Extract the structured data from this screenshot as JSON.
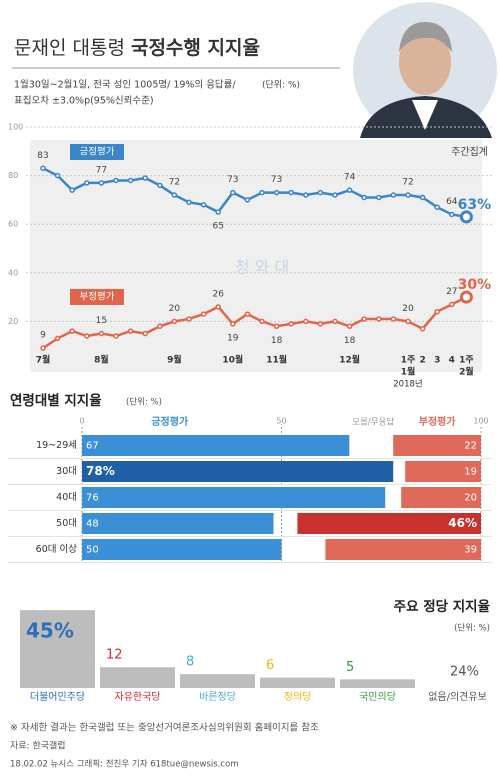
{
  "header": {
    "title_normal": "문재인 대통령",
    "title_bold": "국정수행 지지율",
    "subtitle_lines": [
      "1월30일~2월1일, 전국 성인 1005명/ 19%의 응답률/",
      "표집오차 ±3.0%p(95%신뢰수준)"
    ],
    "unit": "(단위: %)"
  },
  "chart_data": [
    {
      "type": "line",
      "annotation": "주간집계",
      "watermark": "청 와 대",
      "categories": [
        "7월",
        null,
        null,
        null,
        "8월",
        null,
        null,
        null,
        null,
        "9월",
        null,
        null,
        null,
        "10월",
        null,
        null,
        "11월",
        null,
        null,
        null,
        null,
        "12월",
        null,
        null,
        null,
        "1주",
        "2",
        "3",
        "4",
        "1주"
      ],
      "x_sublabels": [
        null,
        null,
        null,
        null,
        null,
        null,
        null,
        null,
        null,
        null,
        null,
        null,
        null,
        null,
        null,
        null,
        null,
        null,
        null,
        null,
        null,
        null,
        null,
        null,
        null,
        "1월",
        null,
        null,
        null,
        "2월"
      ],
      "year_label": "2018년",
      "series": [
        {
          "name": "긍정평가",
          "color": "#3a86c8",
          "values": [
            83,
            80,
            74,
            77,
            77,
            78,
            78,
            79,
            76,
            72,
            69,
            68,
            65,
            73,
            70,
            73,
            73,
            73,
            72,
            73,
            72,
            74,
            71,
            71,
            72,
            72,
            71,
            67,
            64,
            63
          ],
          "value_labels": [
            "83",
            null,
            null,
            null,
            "77",
            null,
            null,
            null,
            null,
            "72",
            null,
            null,
            "65",
            "73",
            null,
            null,
            "73",
            null,
            null,
            null,
            null,
            "74",
            null,
            null,
            null,
            "72",
            null,
            null,
            "64",
            "63%"
          ]
        },
        {
          "name": "부정평가",
          "color": "#e0654a",
          "values": [
            9,
            13,
            16,
            14,
            15,
            14,
            16,
            15,
            18,
            20,
            21,
            23,
            26,
            19,
            23,
            20,
            18,
            19,
            20,
            19,
            20,
            18,
            21,
            21,
            21,
            20,
            17,
            24,
            27,
            30
          ],
          "value_labels": [
            "9",
            null,
            null,
            null,
            "15",
            null,
            null,
            null,
            null,
            "20",
            null,
            null,
            "26",
            "19",
            null,
            null,
            "18",
            null,
            null,
            null,
            null,
            "18",
            null,
            null,
            null,
            "20",
            null,
            null,
            "27",
            "30%"
          ]
        }
      ],
      "ylim": [
        0,
        100
      ],
      "yticks": [
        20,
        40,
        60,
        80,
        100
      ],
      "grid": true
    },
    {
      "type": "barh",
      "title": "연령대별 지지율",
      "unit": "(단위: %)",
      "gap_label": "모름/무응답",
      "categories": [
        "19~29세",
        "30대",
        "40대",
        "50대",
        "60대 이상"
      ],
      "series": [
        {
          "name": "긍정평가",
          "color": "#3a8fd6",
          "colors": [
            "#3a8fd6",
            "#1f5fa6",
            "#3a8fd6",
            "#3a8fd6",
            "#3a8fd6"
          ],
          "values": [
            67,
            78,
            76,
            48,
            50
          ],
          "value_labels": [
            "67",
            "78%",
            "76",
            "48",
            "50"
          ]
        },
        {
          "name": "부정평가",
          "color": "#e06a5a",
          "colors": [
            "#e06a5a",
            "#e06a5a",
            "#e06a5a",
            "#c8312e",
            "#e06a5a"
          ],
          "values": [
            22,
            19,
            20,
            46,
            39
          ],
          "value_labels": [
            "22",
            "19",
            "20",
            "46%",
            "39"
          ]
        }
      ],
      "xlim": [
        0,
        100
      ],
      "xticks": [
        0,
        50,
        100
      ]
    },
    {
      "type": "bar",
      "title": "주요 정당 지지율",
      "unit": "(단위: %)",
      "color": "#bdbdbd",
      "categories": [
        "더불어민주당",
        "자유한국당",
        "바른정당",
        "정의당",
        "국민의당",
        "없음/의견유보"
      ],
      "values": [
        45,
        12,
        8,
        6,
        5,
        24
      ],
      "value_labels": [
        "45%",
        "12",
        "8",
        "6",
        "5",
        "24%"
      ],
      "label_colors": [
        "#2f6fb8",
        "#d4282e",
        "#4aa8dd",
        "#f2b600",
        "#3a9a3a",
        "#555555"
      ],
      "show_bars": [
        true,
        true,
        true,
        true,
        true,
        false
      ]
    }
  ],
  "footer": {
    "note": "※ 자세한 결과는 한국갤럽 또는 중앙선거여론조사심의위원회 홈페이지를 참조",
    "source": "자료: 한국갤럽",
    "credit": "18.02.02 뉴시스 그래픽: 전진우 기자 618tue@newsis.com"
  }
}
